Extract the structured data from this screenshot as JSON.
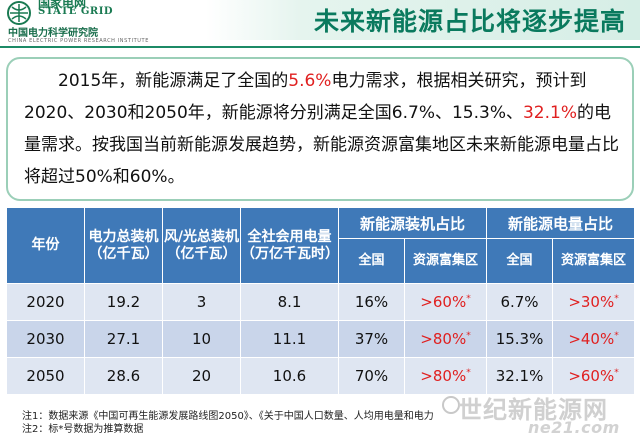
{
  "header": {
    "logo_cn": "国家电网",
    "logo_en": "STATE GRID",
    "institute_cn": "中国电力科学研究院",
    "institute_en": "CHINA ELECTRIC POWER RESEARCH INSTITUTE",
    "title": "未来新能源占比将逐步提高"
  },
  "intro": {
    "t1": "2015年，新能源满足了全国的",
    "r1": "5.6%",
    "t2": "电力需求，根据相关研究，预计到2020、2030和2050年，新能源将分别满足全国6.7%、15.3%、",
    "r2": "32.1%",
    "t3": "的电量需求。按我国当前新能源发展趋势，新能源资源富集地区未来新能源电量占比将超过50%和60%。"
  },
  "table": {
    "headers": {
      "year": "年份",
      "capacity": "电力总装机（亿千瓦）",
      "wind_solar": "风/光总装机（亿千瓦）",
      "consumption": "全社会用电量（万亿千瓦时）",
      "group1": "新能源装机占比",
      "group2": "新能源电量占比",
      "national": "全国",
      "rich_area": "资源富集区"
    },
    "rows": [
      {
        "year": "2020",
        "capacity": "19.2",
        "wind_solar": "3",
        "consumption": "8.1",
        "inst_national": "16%",
        "inst_rich": ">60%",
        "elec_national": "6.7%",
        "elec_rich": ">30%"
      },
      {
        "year": "2030",
        "capacity": "27.1",
        "wind_solar": "10",
        "consumption": "11.1",
        "inst_national": "37%",
        "inst_rich": ">80%",
        "elec_national": "15.3%",
        "elec_rich": ">40%"
      },
      {
        "year": "2050",
        "capacity": "28.6",
        "wind_solar": "20",
        "consumption": "10.6",
        "inst_national": "70%",
        "inst_rich": ">80%",
        "elec_national": "32.1%",
        "elec_rich": ">60%"
      }
    ],
    "star": "*"
  },
  "notes": {
    "n1": "注1：数据来源《中国可再生能源发展路线图2050》、《关于中国人口数量、人均用电量和电力",
    "n2": "注2：标*号数据为推算数据"
  },
  "watermark": {
    "text": "世纪新能源网",
    "url": "ne21.com"
  },
  "colors": {
    "title_green": "#0a7a5e",
    "header_blue": "#3f79b8",
    "highlight_red": "#e02020"
  }
}
